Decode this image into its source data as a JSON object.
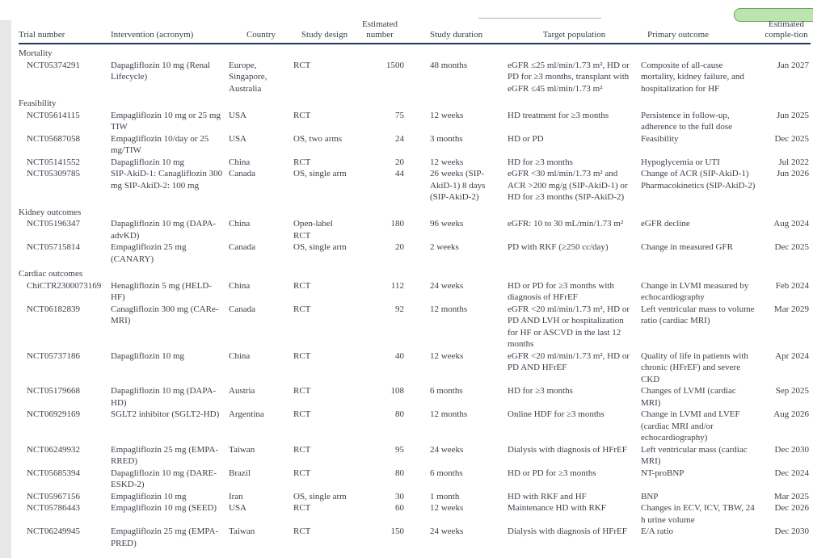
{
  "page": {
    "text_color": "#3b3f48",
    "header_rule_color": "#24375f",
    "accent_green_fill": "#bce4ae",
    "accent_green_border": "#6aa35e",
    "side_strip_color": "#e8e7e5"
  },
  "table": {
    "columns": [
      "Trial number",
      "Intervention (acronym)",
      "Country",
      "Study design",
      "Estimated number",
      "Study duration",
      "Target population",
      "Primary outcome",
      "Estimated comple-tion"
    ],
    "sections": [
      {
        "label": "Mortality",
        "rows": [
          [
            "NCT05374291",
            "Dapagliflozin 10 mg (Renal Lifecycle)",
            "Europe, Singapore, Australia",
            "RCT",
            "1500",
            "48 months",
            "eGFR ≤25 ml/min/1.73 m², HD or PD for ≥3 months, transplant with eGFR ≤45 ml/min/1.73 m²",
            "Composite of all-cause mortality, kidney failure, and hospitalization for HF",
            "Jan 2027"
          ]
        ]
      },
      {
        "label": "Feasibility",
        "rows": [
          [
            "NCT05614115",
            "Empagliflozin 10 mg or 25 mg TIW",
            "USA",
            "RCT",
            "75",
            "12 weeks",
            "HD treatment for ≥3 months",
            "Persistence in follow-up, adherence to the full dose",
            "Jun 2025"
          ],
          [
            "NCT05687058",
            "Empagliflozin 10/day or 25 mg/TIW",
            "USA",
            "OS, two arms",
            "24",
            "3 months",
            "HD or PD",
            "Feasibility",
            "Dec 2025"
          ],
          [
            "NCT05141552",
            "Dapagliflozin 10 mg",
            "China",
            "RCT",
            "20",
            "12 weeks",
            "HD for ≥3 months",
            "Hypoglycemia or UTI",
            "Jul 2022"
          ],
          [
            "NCT05309785",
            "SIP-AkiD-1: Canagliflozin 300 mg SIP-AkiD-2: 100 mg",
            "Canada",
            "OS, single arm",
            "44",
            "26 weeks (SIP-AkiD-1) 8 days (SIP-AkiD-2)",
            "eGFR <30 ml/min/1.73 m² and ACR >200 mg/g (SIP-AkiD-1) or HD for ≥3 months (SIP-AkiD-2)",
            "Change of ACR (SIP-AkiD-1) Pharmacokinetics (SIP-AkiD-2)",
            "Jun 2026"
          ]
        ]
      },
      {
        "label": "Kidney outcomes",
        "rows": [
          [
            "NCT05196347",
            "Dapagliflozin 10 mg (DAPA-advKD)",
            "China",
            "Open-label RCT",
            "180",
            "96 weeks",
            "eGFR: 10 to 30 mL/min/1.73 m²",
            "eGFR decline",
            "Aug 2024"
          ],
          [
            "NCT05715814",
            "Empagliflozin 25 mg (CANARY)",
            "Canada",
            "OS, single arm",
            "20",
            "2 weeks",
            "PD with RKF (≥250 cc/day)",
            "Change in measured GFR",
            "Dec 2025"
          ]
        ]
      },
      {
        "label": "Cardiac outcomes",
        "rows": [
          [
            "ChiCTR2300073169",
            "Henagliflozin 5 mg (HELD-HF)",
            "China",
            "RCT",
            "112",
            "24 weeks",
            "HD or PD for ≥3 months with diagnosis of HFrEF",
            "Change in LVMI measured by echocardiography",
            "Feb 2024"
          ],
          [
            "NCT06182839",
            "Canagliflozin 300 mg (CARe-MRI)",
            "Canada",
            "RCT",
            "92",
            "12 months",
            "eGFR <20 ml/min/1.73 m², HD or PD AND LVH or hospitalization for HF or ASCVD in the last 12 months",
            "Left ventricular mass to volume ratio (cardiac MRI)",
            "Mar 2029"
          ],
          [
            "NCT05737186",
            "Dapagliflozin 10 mg",
            "China",
            "RCT",
            "40",
            "12 weeks",
            "eGFR <20 ml/min/1.73 m², HD or PD AND HFrEF",
            "Quality of life in patients with chronic (HFrEF) and severe CKD",
            "Apr 2024"
          ],
          [
            "NCT05179668",
            "Dapagliflozin 10 mg (DAPA-HD)",
            "Austria",
            "RCT",
            "108",
            "6 months",
            "HD for ≥3 months",
            "Changes of LVMI (cardiac MRI)",
            "Sep 2025"
          ],
          [
            "NCT06929169",
            "SGLT2 inhibitor (SGLT2-HD)",
            "Argentina",
            "RCT",
            "80",
            "12 months",
            "Online HDF for ≥3 months",
            "Change in LVMI and LVEF (cardiac MRI and/or echocardiography)",
            "Aug 2026"
          ],
          [
            "NCT06249932",
            "Empagliflozin 25 mg (EMPA-RRED)",
            "Taiwan",
            "RCT",
            "95",
            "24 weeks",
            "Dialysis with diagnosis of HFrEF",
            "Left ventricular mass (cardiac MRI)",
            "Dec 2030"
          ],
          [
            "NCT05685394",
            "Dapagliflozin 10 mg (DARE-ESKD-2)",
            "Brazil",
            "RCT",
            "80",
            "6 months",
            "HD or PD for ≥3 months",
            "NT-proBNP",
            "Dec 2024"
          ],
          [
            "NCT05967156",
            "Empagliflozin 10 mg",
            "Iran",
            "OS, single arm",
            "30",
            "1 month",
            "HD with RKF and HF",
            "BNP",
            "Mar 2025"
          ],
          [
            "NCT05786443",
            "Empagliflozin 10 mg (SEED)",
            "USA",
            "RCT",
            "60",
            "12 weeks",
            "Maintenance HD with RKF",
            "Changes in ECV, ICV, TBW, 24 h urine volume",
            "Dec 2026"
          ],
          [
            "NCT06249945",
            "Empagliflozin 25 mg (EMPA-PRED)",
            "Taiwan",
            "RCT",
            "150",
            "24 weeks",
            "Dialysis with diagnosis of HFrEF",
            "E/A ratio",
            "Dec 2030"
          ]
        ]
      }
    ]
  }
}
